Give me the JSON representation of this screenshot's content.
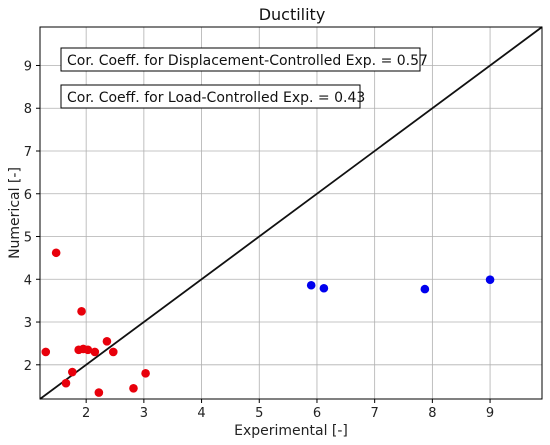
{
  "chart_data": {
    "type": "scatter",
    "title": "Ductility",
    "xlabel": "Experimental [-]",
    "ylabel": "Numerical [-]",
    "xlim": [
      1.2,
      9.9
    ],
    "ylim": [
      1.2,
      9.9
    ],
    "xticks": [
      "2",
      "3",
      "4",
      "5",
      "6",
      "7",
      "8",
      "9"
    ],
    "yticks": [
      "2",
      "3",
      "4",
      "5",
      "6",
      "7",
      "8",
      "9"
    ],
    "grid": true,
    "reference_line": "y = x",
    "annotations": [
      "Cor. Coeff. for Displacement-Controlled Exp. = 0.57",
      "Cor. Coeff. for Load-Controlled Exp. = 0.43"
    ],
    "series": [
      {
        "color": "#e8000b",
        "points": [
          [
            1.3,
            2.3
          ],
          [
            1.48,
            4.62
          ],
          [
            1.65,
            1.57
          ],
          [
            1.76,
            1.83
          ],
          [
            1.87,
            2.35
          ],
          [
            1.92,
            3.25
          ],
          [
            1.95,
            2.37
          ],
          [
            2.03,
            2.35
          ],
          [
            2.15,
            2.3
          ],
          [
            2.22,
            1.35
          ],
          [
            2.36,
            2.55
          ],
          [
            2.47,
            2.3
          ],
          [
            2.82,
            1.45
          ],
          [
            3.03,
            1.8
          ]
        ]
      },
      {
        "color": "#0000ee",
        "points": [
          [
            5.9,
            3.86
          ],
          [
            6.12,
            3.79
          ],
          [
            7.87,
            3.77
          ],
          [
            9.0,
            3.99
          ]
        ]
      }
    ]
  }
}
